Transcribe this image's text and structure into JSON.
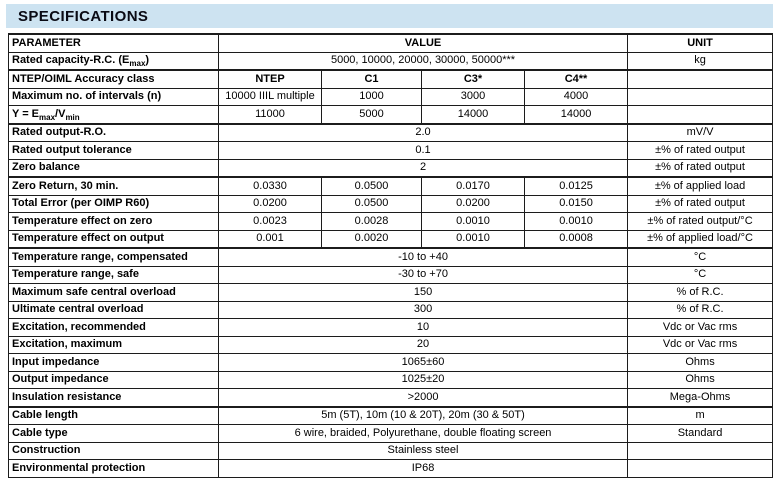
{
  "title": "SPECIFICATIONS",
  "colors": {
    "title_bar_bg": "#cde3f1",
    "border": "#1c1c1c",
    "text": "#000000"
  },
  "table": {
    "headers": {
      "parameter": "PARAMETER",
      "value": "VALUE",
      "unit": "UNIT"
    },
    "rows": [
      {
        "label": "Rated capacity-R.C. (E_{max})",
        "span": "5000, 10000, 20000, 30000, 50000***",
        "unit": "kg"
      },
      {
        "label": "NTEP/OIML Accuracy class",
        "cols": [
          "NTEP",
          "C1",
          "C3*",
          "C4**"
        ],
        "bold_cols": true,
        "unit": "",
        "thick_top": true
      },
      {
        "label": "Maximum no. of intervals (n)",
        "cols": [
          "10000 IIIL multiple",
          "1000",
          "3000",
          "4000"
        ],
        "unit": ""
      },
      {
        "label": "Y = E_{max}/V_{min}",
        "cols": [
          "11000",
          "5000",
          "14000",
          "14000"
        ],
        "unit": ""
      },
      {
        "label": "Rated output-R.O.",
        "span": "2.0",
        "unit": "mV/V",
        "thick_top": true
      },
      {
        "label": "Rated output tolerance",
        "span": "0.1",
        "unit": "±% of rated output"
      },
      {
        "label": "Zero balance",
        "span": "2",
        "unit": "±% of rated output"
      },
      {
        "label": "Zero Return, 30 min.",
        "cols": [
          "0.0330",
          "0.0500",
          "0.0170",
          "0.0125"
        ],
        "unit": "±% of applied load",
        "thick_top": true
      },
      {
        "label": "Total Error (per OIMP R60)",
        "cols": [
          "0.0200",
          "0.0500",
          "0.0200",
          "0.0150"
        ],
        "unit": "±% of rated output"
      },
      {
        "label": "Temperature effect on zero",
        "cols": [
          "0.0023",
          "0.0028",
          "0.0010",
          "0.0010"
        ],
        "unit": "±% of rated output/°C"
      },
      {
        "label": "Temperature effect on output",
        "cols": [
          "0.001",
          "0.0020",
          "0.0010",
          "0.0008"
        ],
        "unit": "±% of applied load/°C"
      },
      {
        "label": "Temperature range, compensated",
        "span": "-10 to +40",
        "unit": "°C",
        "thick_top": true
      },
      {
        "label": "Temperature range, safe",
        "span": "-30 to +70",
        "unit": "°C"
      },
      {
        "label": "Maximum safe central overload",
        "span": "150",
        "unit": "% of R.C."
      },
      {
        "label": "Ultimate central overload",
        "span": "300",
        "unit": "% of R.C."
      },
      {
        "label": "Excitation, recommended",
        "span": "10",
        "unit": "Vdc or Vac rms"
      },
      {
        "label": "Excitation, maximum",
        "span": "20",
        "unit": "Vdc or Vac rms"
      },
      {
        "label": "Input impedance",
        "span": "1065±60",
        "unit": "Ohms"
      },
      {
        "label": "Output impedance",
        "span": "1025±20",
        "unit": "Ohms"
      },
      {
        "label": "Insulation resistance",
        "span": ">2000",
        "unit": "Mega-Ohms"
      },
      {
        "label": "Cable length",
        "span": "5m (5T), 10m (10 & 20T), 20m (30 & 50T)",
        "unit": "m",
        "thick_top": true
      },
      {
        "label": "Cable type",
        "span": "6 wire, braided, Polyurethane, double floating screen",
        "unit": "Standard"
      },
      {
        "label": "Construction",
        "span": "Stainless steel",
        "unit": ""
      },
      {
        "label": "Environmental protection",
        "span": "IP68",
        "unit": ""
      }
    ]
  }
}
